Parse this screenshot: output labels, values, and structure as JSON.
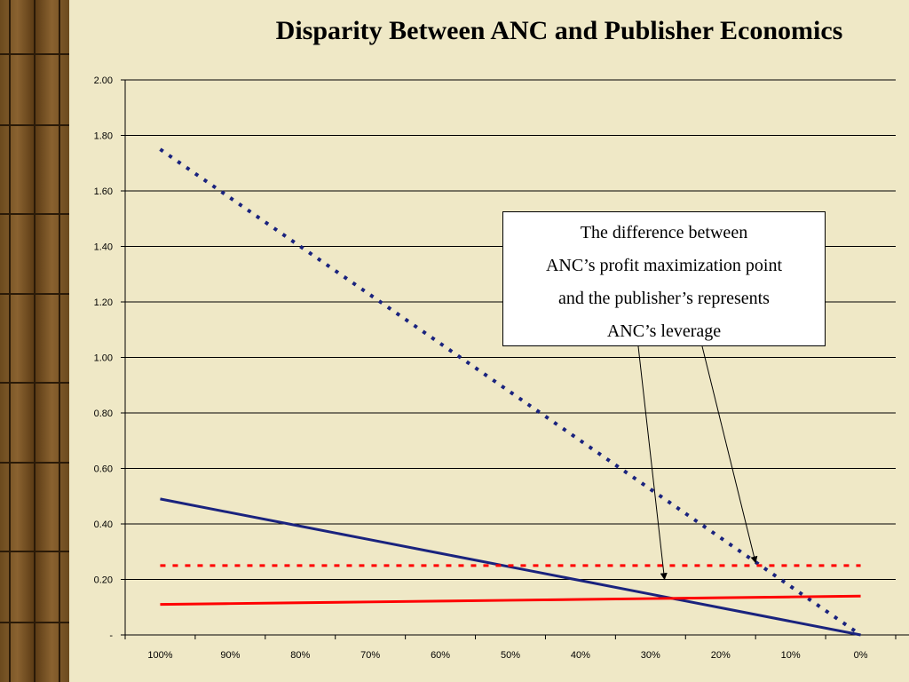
{
  "chart_data": {
    "type": "line",
    "title": "Disparity Between ANC and Publisher Economics",
    "x": [
      "100%",
      "90%",
      "80%",
      "70%",
      "60%",
      "50%",
      "40%",
      "30%",
      "20%",
      "10%",
      "0%"
    ],
    "y_ticks": [
      "-",
      "0.20",
      "0.40",
      "0.60",
      "0.80",
      "1.00",
      "1.20",
      "1.40",
      "1.60",
      "1.80",
      "2.00"
    ],
    "ylim": [
      0,
      2
    ],
    "grid": true,
    "series": [
      {
        "color": "#1a237e",
        "style": "dotted",
        "values": [
          1.75,
          1.575,
          1.4,
          1.225,
          1.05,
          0.875,
          0.7,
          0.525,
          0.35,
          0.175,
          0.0
        ]
      },
      {
        "color": "#1a237e",
        "style": "solid",
        "values": [
          0.49,
          0.441,
          0.392,
          0.343,
          0.294,
          0.245,
          0.196,
          0.147,
          0.098,
          0.049,
          0.0
        ]
      },
      {
        "color": "#ff0000",
        "style": "dashed",
        "values": [
          0.25,
          0.25,
          0.25,
          0.25,
          0.25,
          0.25,
          0.25,
          0.25,
          0.25,
          0.25,
          0.25
        ]
      },
      {
        "color": "#ff0000",
        "style": "solid",
        "values": [
          0.11,
          0.113,
          0.116,
          0.119,
          0.122,
          0.125,
          0.128,
          0.131,
          0.134,
          0.137,
          0.14
        ]
      }
    ],
    "annotation": {
      "lines": [
        "The difference between",
        "ANC’s profit maximization point",
        "and the publisher’s represents",
        "ANC’s leverage"
      ],
      "arrow_targets": [
        {
          "x_index": 7.2,
          "y": 0.2
        },
        {
          "x_index": 8.5,
          "y": 0.26
        }
      ]
    }
  }
}
